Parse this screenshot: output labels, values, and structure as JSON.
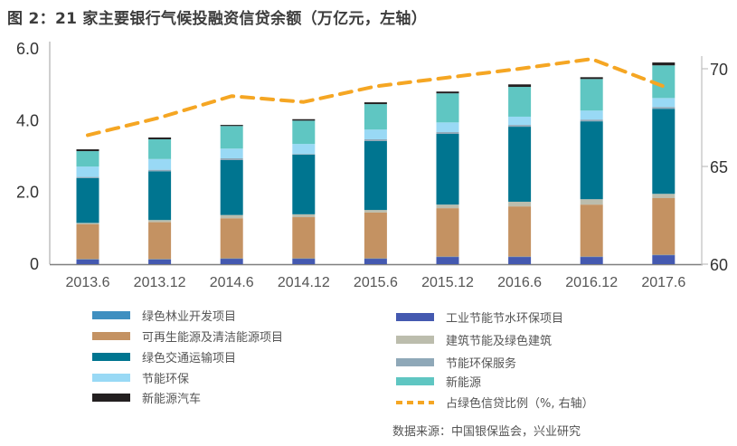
{
  "title": "图 2：21 家主要银行气候投融资信贷余额（万亿元，左轴）",
  "source": "数据来源：中国银保监会，兴业研究",
  "chart_data": {
    "type": "bar",
    "stacked": true,
    "title": "图 2：21 家主要银行气候投融资信贷余额（万亿元，左轴）",
    "xlabel": "",
    "ylabel": "万亿元",
    "y2label": "%",
    "ylim": [
      0,
      6.0
    ],
    "y2lim": [
      60,
      70
    ],
    "yticks": [
      "0",
      "2.0",
      "4.0",
      "6.0"
    ],
    "y2ticks": [
      "60",
      "65",
      "70"
    ],
    "grid": false,
    "legend_position": "bottom",
    "categories": [
      "2013.6",
      "2013.12",
      "2014.6",
      "2014.12",
      "2015.6",
      "2015.12",
      "2016.6",
      "2016.12",
      "2017.6"
    ],
    "series": [
      {
        "name": "工业节能节水环保项目",
        "color": "#4459b0",
        "values": [
          0.13,
          0.13,
          0.15,
          0.15,
          0.15,
          0.2,
          0.2,
          0.2,
          0.25
        ]
      },
      {
        "name": "绿色林业开发项目",
        "color": "#3f8fc0",
        "values": [
          0.01,
          0.01,
          0.01,
          0.01,
          0.01,
          0.01,
          0.01,
          0.01,
          0.01
        ]
      },
      {
        "name": "可再生能源及清洁能源项目",
        "color": "#c49262",
        "values": [
          0.97,
          1.03,
          1.12,
          1.15,
          1.28,
          1.35,
          1.4,
          1.45,
          1.58
        ]
      },
      {
        "name": "建筑节能及绿色建筑",
        "color": "#bcbdad",
        "values": [
          0.04,
          0.06,
          0.09,
          0.08,
          0.07,
          0.1,
          0.13,
          0.15,
          0.12
        ]
      },
      {
        "name": "绿色交通运输项目",
        "color": "#007590",
        "values": [
          1.25,
          1.36,
          1.53,
          1.66,
          1.92,
          1.97,
          2.09,
          2.17,
          2.37
        ]
      },
      {
        "name": "节能环保服务",
        "color": "#8fa8b8",
        "values": [
          0.03,
          0.04,
          0.05,
          0.02,
          0.05,
          0.05,
          0.05,
          0.05,
          0.05
        ]
      },
      {
        "name": "节能环保",
        "color": "#99d9f5",
        "values": [
          0.29,
          0.3,
          0.27,
          0.28,
          0.27,
          0.27,
          0.23,
          0.25,
          0.25
        ]
      },
      {
        "name": "新能源",
        "color": "#5fc6c2",
        "values": [
          0.43,
          0.55,
          0.63,
          0.65,
          0.71,
          0.81,
          0.83,
          0.88,
          0.91
        ]
      },
      {
        "name": "新能源汽车",
        "color": "#231f20",
        "values": [
          0.05,
          0.05,
          0.03,
          0.04,
          0.05,
          0.05,
          0.07,
          0.05,
          0.08
        ]
      }
    ],
    "line": {
      "name": "占绿色信贷比例（%, 右轴）",
      "color": "#f5a623",
      "axis": "right",
      "style": "dashed",
      "values": [
        66.6,
        67.5,
        68.6,
        68.3,
        69.1,
        69.55,
        70.0,
        70.5,
        69.1
      ]
    },
    "legend": {
      "left": [
        {
          "name": "绿色林业开发项目",
          "color": "#3f8fc0"
        },
        {
          "name": "可再生能源及清洁能源项目",
          "color": "#c49262"
        },
        {
          "name": "绿色交通运输项目",
          "color": "#007590"
        },
        {
          "name": "节能环保",
          "color": "#99d9f5"
        },
        {
          "name": "新能源汽车",
          "color": "#231f20"
        }
      ],
      "right": [
        {
          "name": "工业节能节水环保项目",
          "color": "#4459b0"
        },
        {
          "name": "建筑节能及绿色建筑",
          "color": "#bcbdad"
        },
        {
          "name": "节能环保服务",
          "color": "#8fa8b8"
        },
        {
          "name": "新能源",
          "color": "#5fc6c2"
        },
        {
          "name": "占绿色信贷比例（%, 右轴）",
          "color": "#f5a623",
          "dashed": true
        }
      ]
    }
  }
}
